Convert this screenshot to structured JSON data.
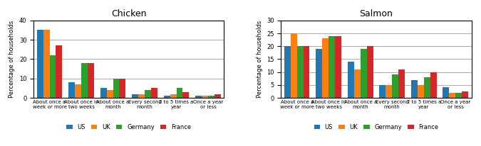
{
  "chart_data": [
    {
      "type": "bar",
      "title": "Chicken",
      "ylabel": "Percentage of households",
      "categories": [
        "About once a\nweek or more",
        "About once in\ntwo weeks",
        "About once a\nmonth",
        "Every second\nmonth",
        "2 to 5 times a\nyear",
        "Once a year\nor less"
      ],
      "series": [
        {
          "name": "US",
          "values": [
            35,
            8,
            5,
            2,
            1,
            1
          ]
        },
        {
          "name": "UK",
          "values": [
            35,
            7,
            4,
            2,
            2,
            1
          ]
        },
        {
          "name": "Germany",
          "values": [
            22,
            18,
            10,
            4,
            5,
            1
          ]
        },
        {
          "name": "France",
          "values": [
            27,
            18,
            10,
            5,
            3,
            2
          ]
        }
      ],
      "ylim": [
        0,
        40
      ],
      "yticks": [
        0,
        10,
        20,
        30,
        40
      ],
      "grid": true,
      "legend": "upper center"
    },
    {
      "type": "bar",
      "title": "Salmon",
      "ylabel": "Percentage of households",
      "categories": [
        "About once a\nweek or more",
        "About once in\ntwo weeks",
        "About once a\nmonth",
        "Every second\nmonth",
        "2 to 5 times a\nyear",
        "Once a year\nor less"
      ],
      "series": [
        {
          "name": "US",
          "values": [
            20,
            19,
            14,
            5,
            7,
            4
          ]
        },
        {
          "name": "UK",
          "values": [
            25,
            23,
            11,
            5,
            5,
            2
          ]
        },
        {
          "name": "Germany",
          "values": [
            20,
            24,
            19,
            9,
            8,
            2
          ]
        },
        {
          "name": "France",
          "values": [
            20,
            24,
            20,
            11,
            10,
            2.5
          ]
        }
      ],
      "ylim": [
        0,
        30
      ],
      "yticks": [
        0,
        5,
        10,
        15,
        20,
        25,
        30
      ],
      "grid": true,
      "legend": "upper center"
    }
  ]
}
